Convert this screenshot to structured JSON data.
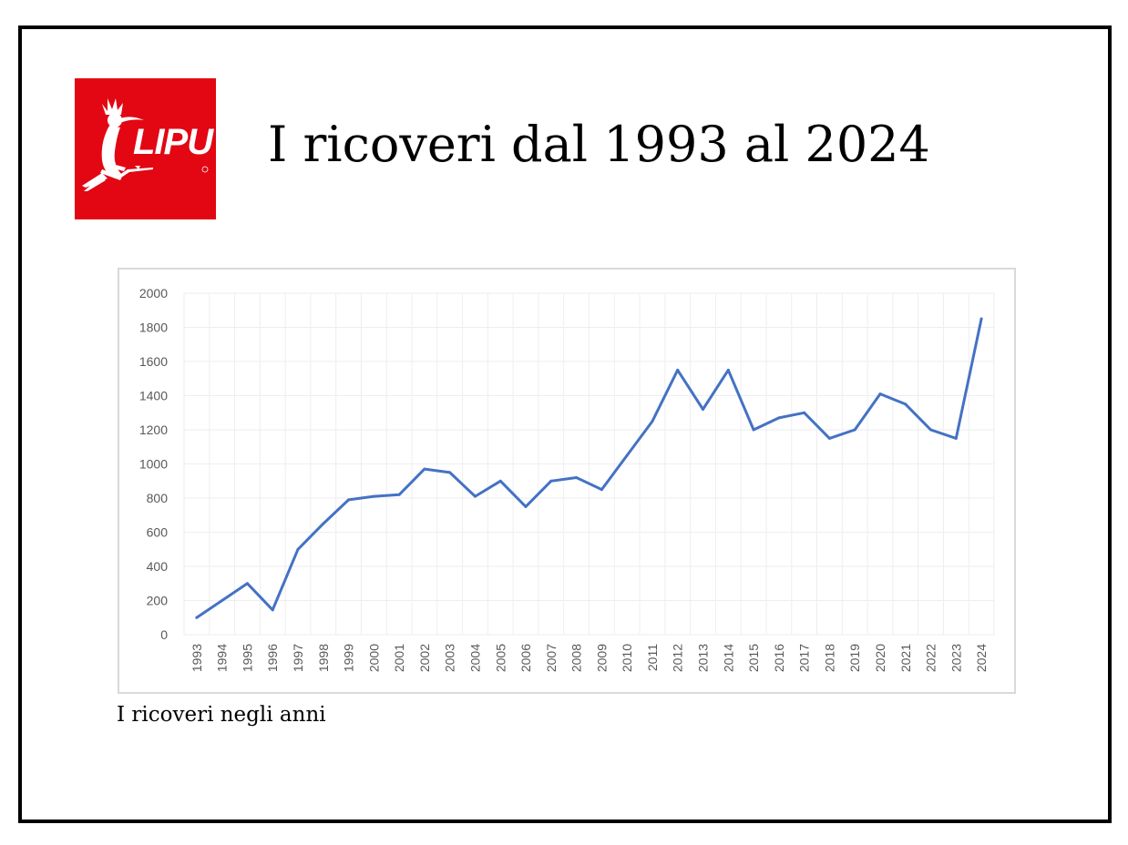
{
  "logo": {
    "text": "LIPU",
    "background": "#e30613",
    "icon": "hoopoe-bird-icon"
  },
  "header": {
    "title": "I ricoveri dal 1993 al 2024"
  },
  "caption": "I ricoveri negli anni",
  "colors": {
    "line": "#4472c4",
    "grid": "#eeeeee",
    "axis_text": "#595959"
  },
  "chart_data": {
    "type": "line",
    "title": "",
    "xlabel": "",
    "ylabel": "",
    "x": [
      "1993",
      "1994",
      "1995",
      "1996",
      "1997",
      "1998",
      "1999",
      "2000",
      "2001",
      "2002",
      "2003",
      "2004",
      "2005",
      "2006",
      "2007",
      "2008",
      "2009",
      "2010",
      "2011",
      "2012",
      "2013",
      "2014",
      "2015",
      "2016",
      "2017",
      "2018",
      "2019",
      "2020",
      "2021",
      "2022",
      "2023",
      "2024"
    ],
    "series": [
      {
        "values": [
          100,
          200,
          300,
          145,
          500,
          650,
          790,
          810,
          820,
          970,
          950,
          810,
          900,
          750,
          900,
          920,
          850,
          1050,
          1250,
          1550,
          1320,
          1550,
          1200,
          1270,
          1300,
          1150,
          1200,
          1410,
          1350,
          1200,
          1150,
          1850
        ]
      }
    ],
    "ylim": [
      0,
      2000
    ],
    "yticks": [
      "0",
      "200",
      "400",
      "600",
      "800",
      "1000",
      "1200",
      "1400",
      "1600",
      "1800",
      "2000"
    ],
    "grid": true,
    "legend": "none"
  }
}
